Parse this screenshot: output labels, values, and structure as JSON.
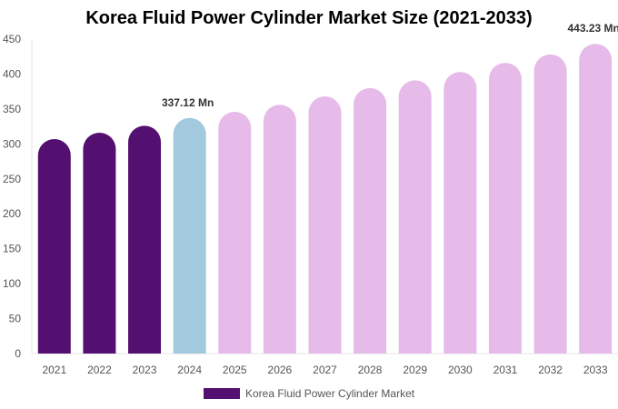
{
  "chart_data": {
    "type": "bar",
    "title": "Korea Fluid Power Cylinder Market Size (2021-2033)",
    "categories": [
      "2021",
      "2022",
      "2023",
      "2024",
      "2025",
      "2026",
      "2027",
      "2028",
      "2029",
      "2030",
      "2031",
      "2032",
      "2033"
    ],
    "series": [
      {
        "name": "Korea Fluid Power Cylinder Market",
        "values": [
          307,
          316,
          326,
          337.12,
          346,
          356,
          368,
          380,
          391,
          403,
          416,
          428,
          443.23
        ]
      }
    ],
    "data_labels": [
      {
        "category": "2024",
        "text": "337.12 Mn"
      },
      {
        "category": "2033",
        "text": "443.23 Mn"
      }
    ],
    "yticks": [
      0,
      50,
      100,
      150,
      200,
      250,
      300,
      350,
      400,
      450
    ],
    "ylim": [
      0,
      450
    ],
    "grid": false,
    "legend_position": "bottom",
    "colors": {
      "historical": "#541070",
      "current": "#a3c9de",
      "forecast": "#e6bbe9"
    },
    "bar_color_groups": [
      "historical",
      "historical",
      "historical",
      "current",
      "forecast",
      "forecast",
      "forecast",
      "forecast",
      "forecast",
      "forecast",
      "forecast",
      "forecast",
      "forecast"
    ]
  }
}
